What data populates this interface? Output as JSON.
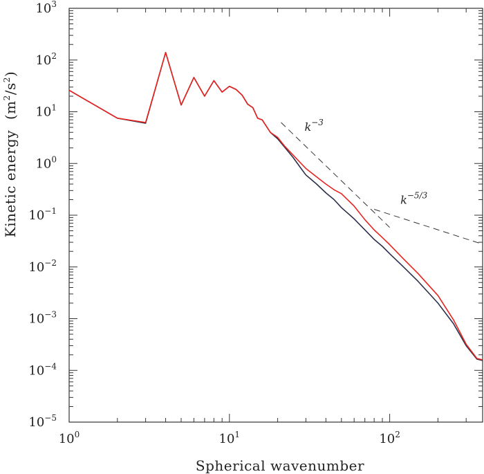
{
  "chart_data": {
    "type": "line",
    "xlabel": "Spherical wavenumber",
    "ylabel_base": "Kinetic energy",
    "ylabel_unit": {
      "open": "(m",
      "exp1": "2",
      "mid": "/s",
      "exp2": "2",
      "close": ")"
    },
    "xscale": "log",
    "yscale": "log",
    "xlim": [
      1,
      380
    ],
    "ylim": [
      1e-05,
      1000
    ],
    "grid": false,
    "legend": "none",
    "x_ticks": [
      {
        "base": "10",
        "exp": "0"
      },
      {
        "base": "10",
        "exp": "1"
      },
      {
        "base": "10",
        "exp": "2"
      }
    ],
    "y_ticks": [
      {
        "base": "10",
        "exp": "3"
      },
      {
        "base": "10",
        "exp": "2"
      },
      {
        "base": "10",
        "exp": "1"
      },
      {
        "base": "10",
        "exp": "0"
      },
      {
        "base": "10",
        "exp": "−1"
      },
      {
        "base": "10",
        "exp": "−2"
      },
      {
        "base": "10",
        "exp": "−3"
      },
      {
        "base": "10",
        "exp": "−4"
      },
      {
        "base": "10",
        "exp": "−5"
      }
    ],
    "series": [
      {
        "color": "#e8231f",
        "x": [
          1,
          2,
          3,
          4,
          5,
          6,
          7,
          8,
          9,
          10,
          11,
          12,
          13,
          14,
          15,
          16,
          18,
          20,
          22,
          25,
          28,
          30,
          35,
          40,
          45,
          50,
          60,
          70,
          80,
          90,
          100,
          120,
          150,
          200,
          250,
          300,
          350,
          380
        ],
        "y": [
          26,
          7.5,
          6.2,
          140,
          13.5,
          46,
          20,
          40,
          24,
          31,
          27,
          21,
          14,
          12,
          7.5,
          7,
          4,
          3.2,
          2.2,
          1.45,
          1.0,
          0.8,
          0.55,
          0.4,
          0.31,
          0.26,
          0.15,
          0.082,
          0.052,
          0.037,
          0.027,
          0.015,
          0.0075,
          0.0028,
          0.00095,
          0.00032,
          0.00017,
          0.00016
        ]
      },
      {
        "color": "#2b2f4a",
        "x": [
          1,
          2,
          3,
          4,
          5,
          6,
          7,
          8,
          9,
          10,
          11,
          12,
          13,
          14,
          15,
          16,
          18,
          20,
          22,
          25,
          28,
          30,
          35,
          40,
          45,
          50,
          60,
          70,
          80,
          90,
          100,
          120,
          150,
          200,
          250,
          300,
          350,
          380
        ],
        "y": [
          26,
          7.5,
          6.0,
          140,
          13.5,
          46,
          20,
          40,
          24,
          31,
          27,
          21,
          14,
          12,
          7.5,
          7,
          4,
          3.0,
          2.1,
          1.3,
          0.8,
          0.6,
          0.4,
          0.27,
          0.2,
          0.14,
          0.085,
          0.052,
          0.034,
          0.025,
          0.018,
          0.0105,
          0.0053,
          0.002,
          0.0008,
          0.0003,
          0.000165,
          0.000155
        ]
      }
    ],
    "reference_lines": [
      {
        "label_base": "k",
        "label_exp": "−3",
        "x": [
          21,
          100
        ],
        "y": [
          6.2,
          0.058
        ]
      },
      {
        "label_base": "k",
        "label_exp": "−5/3",
        "x": [
          80,
          380
        ],
        "y": [
          0.13,
          0.0275
        ]
      }
    ]
  }
}
